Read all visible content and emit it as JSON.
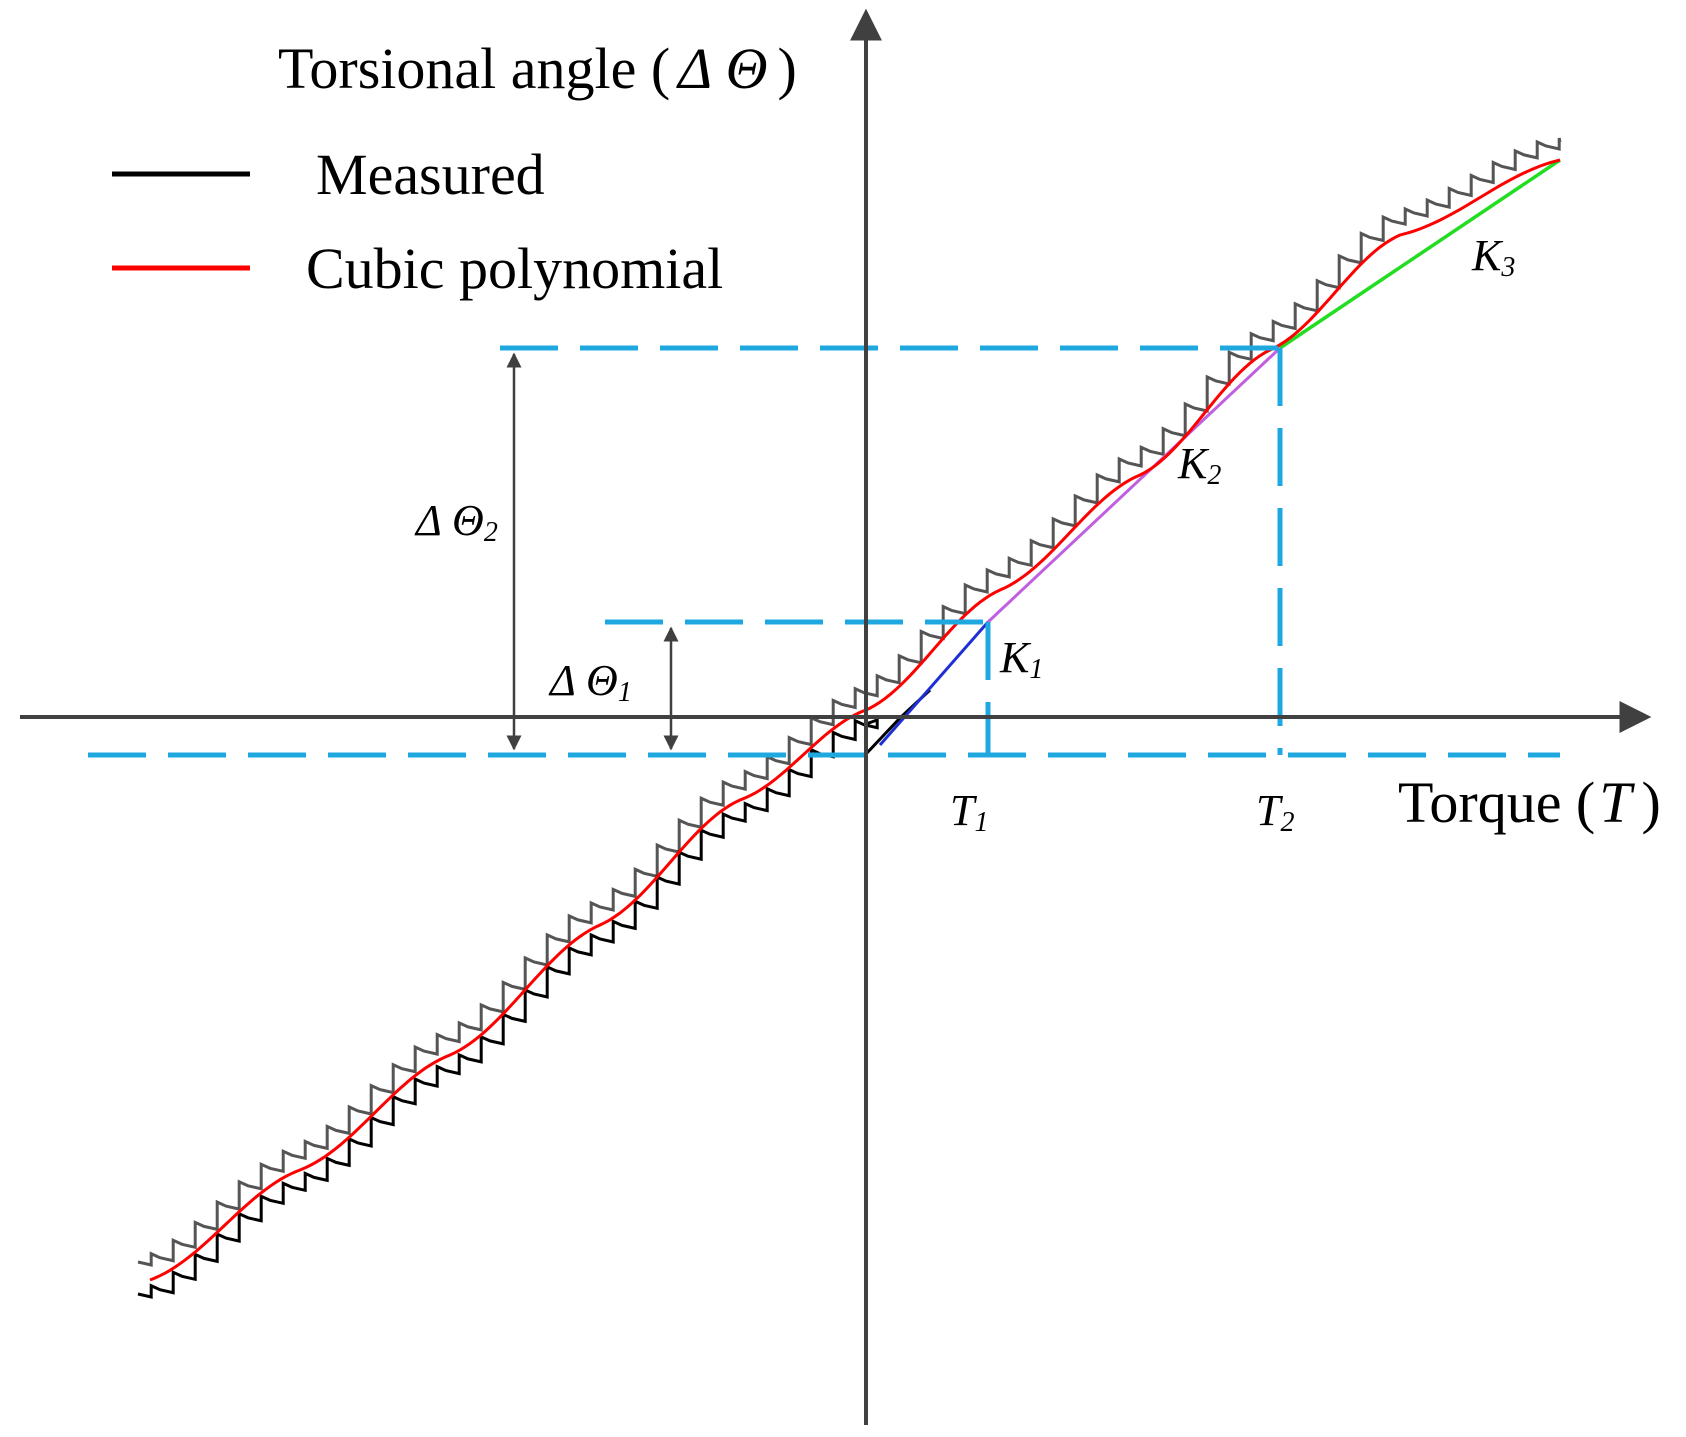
{
  "axes": {
    "y_label": "Torsional angle (",
    "y_symbol": "Δ Θ",
    "y_close": ")",
    "x_label": "Torque (",
    "x_symbol": "T",
    "x_close": ")"
  },
  "legend": {
    "items": [
      {
        "label": "Measured",
        "color": "#000000"
      },
      {
        "label": "Cubic polynomial",
        "color": "#ff0000"
      }
    ]
  },
  "annotations": {
    "delta1_sym": "Δ Θ",
    "delta1_sub": "1",
    "delta2_sym": "Δ Θ",
    "delta2_sub": "2",
    "t1": "T",
    "t1_sub": "1",
    "t2": "T",
    "t2_sub": "2",
    "k1": "K",
    "k1_sub": "1",
    "k2": "K",
    "k2_sub": "2",
    "k3": "K",
    "k3_sub": "3"
  },
  "colors": {
    "measured": "#000000",
    "measured_upper": "#555555",
    "fit": "#ff0000",
    "k1_segment": "#1f2fd6",
    "k2_segment": "#c060e0",
    "k3_segment": "#22dd22",
    "guide_dash": "#1fa8e0",
    "axis": "#404040"
  }
}
